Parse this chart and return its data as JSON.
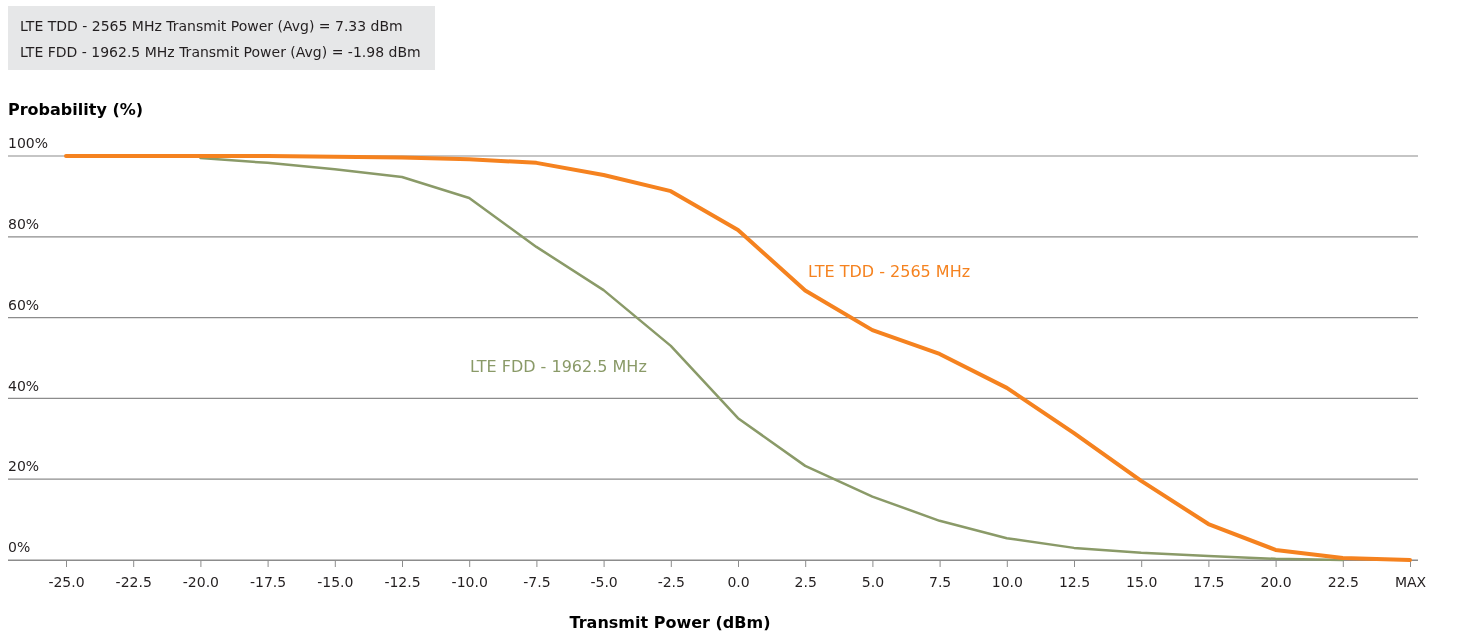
{
  "chart_data": {
    "type": "line",
    "ylabel": "Probability (%)",
    "xlabel": "Transmit Power (dBm)",
    "annotations": [
      "LTE TDD - 2565 MHz Transmit Power (Avg) = 7.33 dBm",
      "LTE FDD - 1962.5 MHz Transmit Power (Avg) = -1.98 dBm"
    ],
    "categories": [
      "-25.0",
      "-22.5",
      "-20.0",
      "-17.5",
      "-15.0",
      "-12.5",
      "-10.0",
      "-7.5",
      "-5.0",
      "-2.5",
      "0.0",
      "2.5",
      "5.0",
      "7.5",
      "10.0",
      "12.5",
      "15.0",
      "17.5",
      "20.0",
      "22.5",
      "MAX"
    ],
    "series": [
      {
        "name": "LTE TDD - 2565 MHz",
        "color": "#f5821f",
        "values": [
          100,
          100,
          100,
          100,
          99.8,
          99.6,
          99.2,
          98.3,
          95.3,
          91.3,
          81.7,
          66.7,
          56.9,
          51,
          42.6,
          31.4,
          19.6,
          8.9,
          2.5,
          0.5,
          0
        ]
      },
      {
        "name": "LTE FDD - 1962.5 MHz",
        "color": "#8a9a68",
        "values": [
          null,
          null,
          99.5,
          98.3,
          96.7,
          94.8,
          89.6,
          77.5,
          66.8,
          53,
          35.1,
          23.3,
          15.7,
          9.7,
          5.4,
          3,
          1.8,
          1,
          0.3,
          0,
          null
        ]
      }
    ],
    "ylim": [
      0,
      100
    ],
    "yticks": [
      {
        "value": 0,
        "label": "0%"
      },
      {
        "value": 20,
        "label": "20%"
      },
      {
        "value": 40,
        "label": "40%"
      },
      {
        "value": 60,
        "label": "60%"
      },
      {
        "value": 80,
        "label": "80%"
      },
      {
        "value": 100,
        "label": "100%"
      }
    ],
    "grid": "y",
    "marker": "none",
    "line_style": "solid"
  }
}
